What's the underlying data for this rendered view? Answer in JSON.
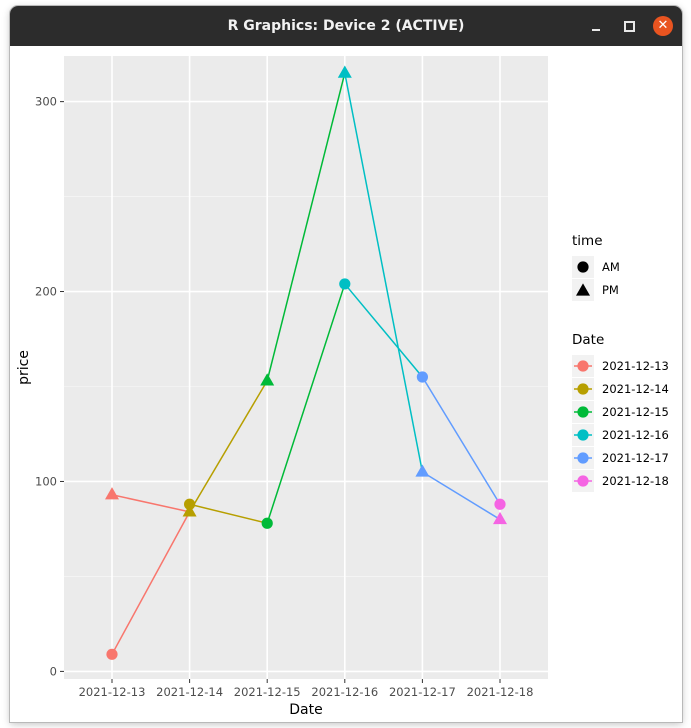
{
  "window": {
    "title": "R Graphics: Device 2 (ACTIVE)",
    "buttons": {
      "minimize_icon": "minimize-icon",
      "maximize_icon": "maximize-icon",
      "close_icon": "close-icon",
      "close_glyph": "✕"
    }
  },
  "chart_data": {
    "type": "line",
    "xlabel": "Date",
    "ylabel": "price",
    "categories": [
      "2021-12-13",
      "2021-12-14",
      "2021-12-15",
      "2021-12-16",
      "2021-12-17",
      "2021-12-18"
    ],
    "ylim": [
      -4,
      324
    ],
    "yticks": [
      0,
      100,
      200,
      300
    ],
    "grid": true,
    "background": "#EBEBEB",
    "series": [
      {
        "name": "2021-12-13",
        "color": "#F8766D",
        "points": [
          {
            "x": "2021-12-13",
            "y": 9,
            "time": "AM"
          },
          {
            "x": "2021-12-14",
            "y": 84,
            "time": "PM"
          }
        ]
      },
      {
        "name": "2021-12-14",
        "color": "#B79F00",
        "points": [
          {
            "x": "2021-12-14",
            "y": 88,
            "time": "AM"
          },
          {
            "x": "2021-12-15",
            "y": 78,
            "time": "PM"
          }
        ]
      },
      {
        "name": "2021-12-15",
        "color": "#00BA38",
        "points": [
          {
            "x": "2021-12-15",
            "y": 78,
            "time": "AM"
          },
          {
            "x": "2021-12-16",
            "y": 204,
            "time": "PM"
          }
        ]
      },
      {
        "name": "2021-12-16",
        "color": "#00BFC4",
        "points": [
          {
            "x": "2021-12-16",
            "y": 204,
            "time": "AM"
          },
          {
            "x": "2021-12-17",
            "y": 155,
            "time": "PM"
          }
        ]
      },
      {
        "name": "2021-12-17",
        "color": "#619CFF",
        "points": [
          {
            "x": "2021-12-17",
            "y": 155,
            "time": "AM"
          },
          {
            "x": "2021-12-18",
            "y": 88,
            "time": "PM"
          }
        ]
      },
      {
        "name": "2021-12-18",
        "color": "#F564E3",
        "points": [
          {
            "x": "2021-12-18",
            "y": 88,
            "time": "AM"
          }
        ]
      }
    ],
    "extra_lines": [
      {
        "color": "#F8766D",
        "points": [
          {
            "x": "2021-12-13",
            "y": 93
          },
          {
            "x": "2021-12-14",
            "y": 84
          }
        ]
      },
      {
        "color": "#B79F00",
        "points": [
          {
            "x": "2021-12-14",
            "y": 84
          },
          {
            "x": "2021-12-15",
            "y": 153
          }
        ]
      },
      {
        "color": "#00BA38",
        "points": [
          {
            "x": "2021-12-15",
            "y": 153
          },
          {
            "x": "2021-12-16",
            "y": 315
          }
        ]
      },
      {
        "color": "#00BFC4",
        "points": [
          {
            "x": "2021-12-16",
            "y": 315
          },
          {
            "x": "2021-12-17",
            "y": 105
          }
        ]
      },
      {
        "color": "#619CFF",
        "points": [
          {
            "x": "2021-12-17",
            "y": 105
          },
          {
            "x": "2021-12-18",
            "y": 80
          }
        ]
      }
    ],
    "pm_points": [
      {
        "x": "2021-12-13",
        "y": 93,
        "color": "#F8766D"
      },
      {
        "x": "2021-12-14",
        "y": 84,
        "color": "#B79F00"
      },
      {
        "x": "2021-12-15",
        "y": 153,
        "color": "#00BA38"
      },
      {
        "x": "2021-12-16",
        "y": 315,
        "color": "#00BFC4"
      },
      {
        "x": "2021-12-17",
        "y": 105,
        "color": "#619CFF"
      },
      {
        "x": "2021-12-18",
        "y": 80,
        "color": "#F564E3"
      }
    ],
    "am_points": [
      {
        "x": "2021-12-13",
        "y": 9,
        "color": "#F8766D"
      },
      {
        "x": "2021-12-14",
        "y": 88,
        "color": "#B79F00"
      },
      {
        "x": "2021-12-15",
        "y": 78,
        "color": "#00BA38"
      },
      {
        "x": "2021-12-16",
        "y": 204,
        "color": "#00BFC4"
      },
      {
        "x": "2021-12-17",
        "y": 155,
        "color": "#619CFF"
      },
      {
        "x": "2021-12-18",
        "y": 88,
        "color": "#F564E3"
      }
    ],
    "legend": {
      "placement": "right",
      "time": {
        "title": "time",
        "entries": [
          {
            "label": "AM",
            "shape": "circle"
          },
          {
            "label": "PM",
            "shape": "triangle"
          }
        ]
      },
      "date": {
        "title": "Date",
        "entries": [
          {
            "label": "2021-12-13",
            "color": "#F8766D"
          },
          {
            "label": "2021-12-14",
            "color": "#B79F00"
          },
          {
            "label": "2021-12-15",
            "color": "#00BA38"
          },
          {
            "label": "2021-12-16",
            "color": "#00BFC4"
          },
          {
            "label": "2021-12-17",
            "color": "#619CFF"
          },
          {
            "label": "2021-12-18",
            "color": "#F564E3"
          }
        ]
      }
    }
  }
}
